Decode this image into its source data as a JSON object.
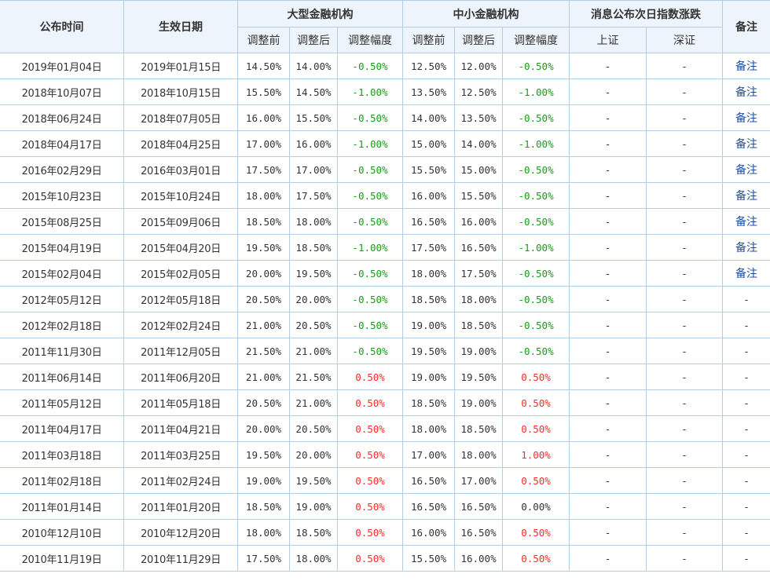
{
  "header": {
    "publish_time": "公布时间",
    "effective_date": "生效日期",
    "large_institutions": "大型金融机构",
    "small_institutions": "中小金融机构",
    "next_day_index": "消息公布次日指数涨跌",
    "remarks": "备注",
    "before": "调整前",
    "after": "调整后",
    "change": "调整幅度",
    "shanghai": "上证",
    "shenzhen": "深证"
  },
  "rows": [
    {
      "publish": "2019年01月04日",
      "effective": "2019年01月15日",
      "l_before": "14.50%",
      "l_after": "14.00%",
      "l_change": "-0.50%",
      "s_before": "12.50%",
      "s_after": "12.00%",
      "s_change": "-0.50%",
      "sh": "-",
      "sz": "-",
      "note": "备注"
    },
    {
      "publish": "2018年10月07日",
      "effective": "2018年10月15日",
      "l_before": "15.50%",
      "l_after": "14.50%",
      "l_change": "-1.00%",
      "s_before": "13.50%",
      "s_after": "12.50%",
      "s_change": "-1.00%",
      "sh": "-",
      "sz": "-",
      "note": "备注"
    },
    {
      "publish": "2018年06月24日",
      "effective": "2018年07月05日",
      "l_before": "16.00%",
      "l_after": "15.50%",
      "l_change": "-0.50%",
      "s_before": "14.00%",
      "s_after": "13.50%",
      "s_change": "-0.50%",
      "sh": "-",
      "sz": "-",
      "note": "备注"
    },
    {
      "publish": "2018年04月17日",
      "effective": "2018年04月25日",
      "l_before": "17.00%",
      "l_after": "16.00%",
      "l_change": "-1.00%",
      "s_before": "15.00%",
      "s_after": "14.00%",
      "s_change": "-1.00%",
      "sh": "-",
      "sz": "-",
      "note": "备注"
    },
    {
      "publish": "2016年02月29日",
      "effective": "2016年03月01日",
      "l_before": "17.50%",
      "l_after": "17.00%",
      "l_change": "-0.50%",
      "s_before": "15.50%",
      "s_after": "15.00%",
      "s_change": "-0.50%",
      "sh": "-",
      "sz": "-",
      "note": "备注"
    },
    {
      "publish": "2015年10月23日",
      "effective": "2015年10月24日",
      "l_before": "18.00%",
      "l_after": "17.50%",
      "l_change": "-0.50%",
      "s_before": "16.00%",
      "s_after": "15.50%",
      "s_change": "-0.50%",
      "sh": "-",
      "sz": "-",
      "note": "备注"
    },
    {
      "publish": "2015年08月25日",
      "effective": "2015年09月06日",
      "l_before": "18.50%",
      "l_after": "18.00%",
      "l_change": "-0.50%",
      "s_before": "16.50%",
      "s_after": "16.00%",
      "s_change": "-0.50%",
      "sh": "-",
      "sz": "-",
      "note": "备注"
    },
    {
      "publish": "2015年04月19日",
      "effective": "2015年04月20日",
      "l_before": "19.50%",
      "l_after": "18.50%",
      "l_change": "-1.00%",
      "s_before": "17.50%",
      "s_after": "16.50%",
      "s_change": "-1.00%",
      "sh": "-",
      "sz": "-",
      "note": "备注"
    },
    {
      "publish": "2015年02月04日",
      "effective": "2015年02月05日",
      "l_before": "20.00%",
      "l_after": "19.50%",
      "l_change": "-0.50%",
      "s_before": "18.00%",
      "s_after": "17.50%",
      "s_change": "-0.50%",
      "sh": "-",
      "sz": "-",
      "note": "备注"
    },
    {
      "publish": "2012年05月12日",
      "effective": "2012年05月18日",
      "l_before": "20.50%",
      "l_after": "20.00%",
      "l_change": "-0.50%",
      "s_before": "18.50%",
      "s_after": "18.00%",
      "s_change": "-0.50%",
      "sh": "-",
      "sz": "-",
      "note": "-"
    },
    {
      "publish": "2012年02月18日",
      "effective": "2012年02月24日",
      "l_before": "21.00%",
      "l_after": "20.50%",
      "l_change": "-0.50%",
      "s_before": "19.00%",
      "s_after": "18.50%",
      "s_change": "-0.50%",
      "sh": "-",
      "sz": "-",
      "note": "-"
    },
    {
      "publish": "2011年11月30日",
      "effective": "2011年12月05日",
      "l_before": "21.50%",
      "l_after": "21.00%",
      "l_change": "-0.50%",
      "s_before": "19.50%",
      "s_after": "19.00%",
      "s_change": "-0.50%",
      "sh": "-",
      "sz": "-",
      "note": "-"
    },
    {
      "publish": "2011年06月14日",
      "effective": "2011年06月20日",
      "l_before": "21.00%",
      "l_after": "21.50%",
      "l_change": "0.50%",
      "s_before": "19.00%",
      "s_after": "19.50%",
      "s_change": "0.50%",
      "sh": "-",
      "sz": "-",
      "note": "-"
    },
    {
      "publish": "2011年05月12日",
      "effective": "2011年05月18日",
      "l_before": "20.50%",
      "l_after": "21.00%",
      "l_change": "0.50%",
      "s_before": "18.50%",
      "s_after": "19.00%",
      "s_change": "0.50%",
      "sh": "-",
      "sz": "-",
      "note": "-"
    },
    {
      "publish": "2011年04月17日",
      "effective": "2011年04月21日",
      "l_before": "20.00%",
      "l_after": "20.50%",
      "l_change": "0.50%",
      "s_before": "18.00%",
      "s_after": "18.50%",
      "s_change": "0.50%",
      "sh": "-",
      "sz": "-",
      "note": "-"
    },
    {
      "publish": "2011年03月18日",
      "effective": "2011年03月25日",
      "l_before": "19.50%",
      "l_after": "20.00%",
      "l_change": "0.50%",
      "s_before": "17.00%",
      "s_after": "18.00%",
      "s_change": "1.00%",
      "sh": "-",
      "sz": "-",
      "note": "-"
    },
    {
      "publish": "2011年02月18日",
      "effective": "2011年02月24日",
      "l_before": "19.00%",
      "l_after": "19.50%",
      "l_change": "0.50%",
      "s_before": "16.50%",
      "s_after": "17.00%",
      "s_change": "0.50%",
      "sh": "-",
      "sz": "-",
      "note": "-"
    },
    {
      "publish": "2011年01月14日",
      "effective": "2011年01月20日",
      "l_before": "18.50%",
      "l_after": "19.00%",
      "l_change": "0.50%",
      "s_before": "16.50%",
      "s_after": "16.50%",
      "s_change": "0.00%",
      "sh": "-",
      "sz": "-",
      "note": "-"
    },
    {
      "publish": "2010年12月10日",
      "effective": "2010年12月20日",
      "l_before": "18.00%",
      "l_after": "18.50%",
      "l_change": "0.50%",
      "s_before": "16.00%",
      "s_after": "16.50%",
      "s_change": "0.50%",
      "sh": "-",
      "sz": "-",
      "note": "-"
    },
    {
      "publish": "2010年11月19日",
      "effective": "2010年11月29日",
      "l_before": "17.50%",
      "l_after": "18.00%",
      "l_change": "0.50%",
      "s_before": "15.50%",
      "s_after": "16.00%",
      "s_change": "0.50%",
      "sh": "-",
      "sz": "-",
      "note": "-"
    }
  ],
  "colors": {
    "negative": "#1a9b1a",
    "positive": "#ff2a2a",
    "neutral": "#333333",
    "link": "#1f4f9e",
    "border": "#b3cde3",
    "header_bg": "#eef4fb"
  }
}
